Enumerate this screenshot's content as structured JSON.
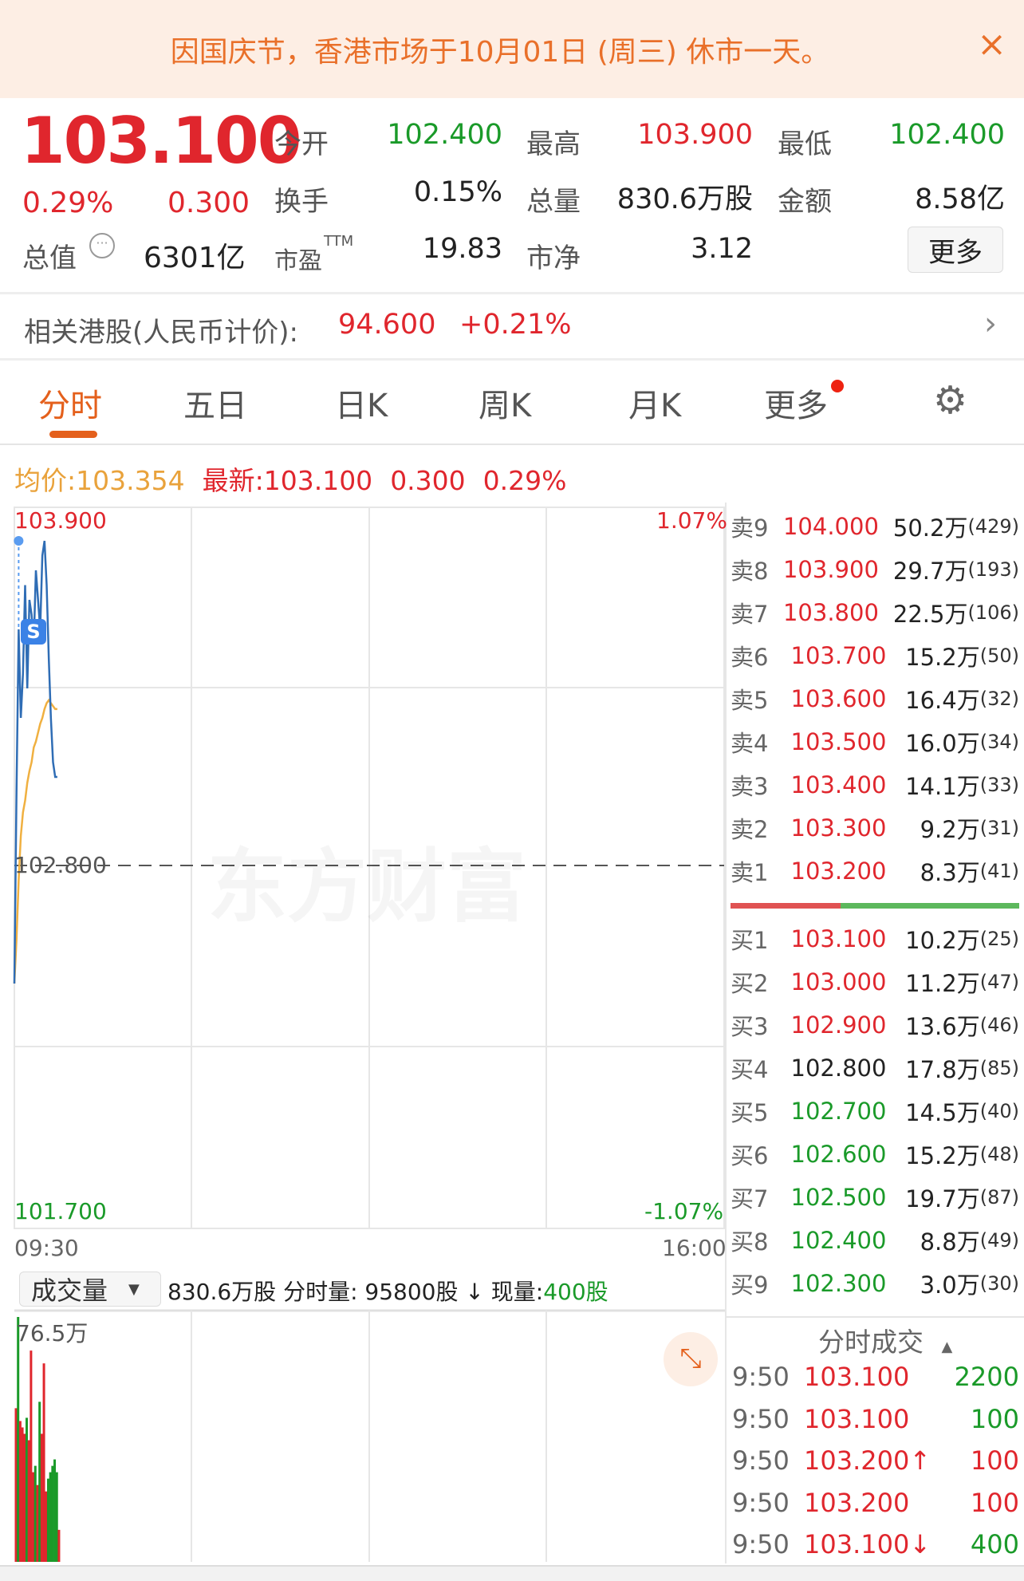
{
  "banner": {
    "text": "因国庆节，香港市场于10月01日 (周三) 休市一天。",
    "close_icon": "×"
  },
  "quote": {
    "price": "103.100",
    "change_pct": "0.29%",
    "change": "0.300",
    "stats": [
      {
        "label": "今开",
        "value": "102.400",
        "color": "green"
      },
      {
        "label": "最高",
        "value": "103.900",
        "color": "red"
      },
      {
        "label": "最低",
        "value": "102.400",
        "color": "green"
      },
      {
        "label": "换手",
        "value": "0.15%",
        "color": "dark"
      },
      {
        "label": "总量",
        "value": "830.6万股",
        "color": "dark"
      },
      {
        "label": "金额",
        "value": "8.58亿",
        "color": "dark"
      },
      {
        "label": "市盈",
        "value": "19.83",
        "color": "dark",
        "sup": "TTM"
      },
      {
        "label": "市净",
        "value": "3.12",
        "color": "dark"
      }
    ],
    "market_cap_label": "总值",
    "market_cap": "6301亿",
    "more_label": "更多"
  },
  "related": {
    "label": "相关港股(人民币计价):",
    "price": "94.600",
    "change": "+0.21%"
  },
  "tabs": [
    {
      "label": "分时",
      "active": true
    },
    {
      "label": "五日"
    },
    {
      "label": "日K"
    },
    {
      "label": "周K"
    },
    {
      "label": "月K"
    },
    {
      "label": "更多",
      "badge": true
    }
  ],
  "info_bar": {
    "avg_label": "均价:",
    "avg": "103.354",
    "latest_label": "最新:",
    "latest": "103.100",
    "change": "0.300",
    "change_pct": "0.29%"
  },
  "chart_data": {
    "type": "line",
    "y_labels": {
      "top": "103.900",
      "mid": "102.800",
      "bottom": "101.700",
      "top_pct": "1.07%",
      "bottom_pct": "-1.07%"
    },
    "x_labels": {
      "start": "09:30",
      "end": "16:00"
    },
    "ylim": [
      101.7,
      103.9
    ],
    "minutes_total": 330,
    "price": [
      102.4,
      103.05,
      103.6,
      103.3,
      103.45,
      103.75,
      103.4,
      103.7,
      103.65,
      103.55,
      103.8,
      103.7,
      103.6,
      103.85,
      103.9,
      103.75,
      103.5,
      103.3,
      103.15,
      103.1,
      103.1
    ],
    "avg": [
      102.4,
      102.55,
      102.75,
      102.9,
      102.98,
      103.02,
      103.08,
      103.12,
      103.15,
      103.2,
      103.22,
      103.25,
      103.28,
      103.3,
      103.33,
      103.35,
      103.36,
      103.35,
      103.34,
      103.33,
      103.33
    ],
    "signal_marker": "S",
    "watermark": "东方财富",
    "volume": {
      "selector": "成交量",
      "total": "830.6万股",
      "minute_label": "分时量:",
      "minute_value": "95800股",
      "arrow": "↓",
      "now_label": "现量:",
      "now_value": "400股",
      "max_label": "76.5万",
      "ylim": [
        0,
        76.5
      ],
      "values": [
        48,
        76.5,
        44,
        42,
        40,
        45,
        38,
        66,
        28,
        30,
        24,
        50,
        40,
        62,
        22,
        26,
        28,
        30,
        32,
        28,
        10
      ],
      "colors": [
        "red",
        "green",
        "red",
        "red",
        "red",
        "green",
        "red",
        "red",
        "red",
        "green",
        "red",
        "green",
        "red",
        "red",
        "red",
        "green",
        "green",
        "green",
        "green",
        "green",
        "red"
      ]
    }
  },
  "order_book": {
    "asks": [
      {
        "label": "卖9",
        "price": "104.000",
        "vol": "50.2万",
        "count": "(429)",
        "color": "red"
      },
      {
        "label": "卖8",
        "price": "103.900",
        "vol": "29.7万",
        "count": "(193)",
        "color": "red"
      },
      {
        "label": "卖7",
        "price": "103.800",
        "vol": "22.5万",
        "count": "(106)",
        "color": "red"
      },
      {
        "label": "卖6",
        "price": "103.700",
        "vol": "15.2万",
        "count": "(50)",
        "color": "red"
      },
      {
        "label": "卖5",
        "price": "103.600",
        "vol": "16.4万",
        "count": "(32)",
        "color": "red"
      },
      {
        "label": "卖4",
        "price": "103.500",
        "vol": "16.0万",
        "count": "(34)",
        "color": "red"
      },
      {
        "label": "卖3",
        "price": "103.400",
        "vol": "14.1万",
        "count": "(33)",
        "color": "red"
      },
      {
        "label": "卖2",
        "price": "103.300",
        "vol": "9.2万",
        "count": "(31)",
        "color": "red"
      },
      {
        "label": "卖1",
        "price": "103.200",
        "vol": "8.3万",
        "count": "(41)",
        "color": "red"
      }
    ],
    "bid_ratio": 0.38,
    "bids": [
      {
        "label": "买1",
        "price": "103.100",
        "vol": "10.2万",
        "count": "(25)",
        "color": "red"
      },
      {
        "label": "买2",
        "price": "103.000",
        "vol": "11.2万",
        "count": "(47)",
        "color": "red"
      },
      {
        "label": "买3",
        "price": "102.900",
        "vol": "13.6万",
        "count": "(46)",
        "color": "red"
      },
      {
        "label": "买4",
        "price": "102.800",
        "vol": "17.8万",
        "count": "(85)",
        "color": "dark"
      },
      {
        "label": "买5",
        "price": "102.700",
        "vol": "14.5万",
        "count": "(40)",
        "color": "green"
      },
      {
        "label": "买6",
        "price": "102.600",
        "vol": "15.2万",
        "count": "(48)",
        "color": "green"
      },
      {
        "label": "买7",
        "price": "102.500",
        "vol": "19.7万",
        "count": "(87)",
        "color": "green"
      },
      {
        "label": "买8",
        "price": "102.400",
        "vol": "8.8万",
        "count": "(49)",
        "color": "green"
      },
      {
        "label": "买9",
        "price": "102.300",
        "vol": "3.0万",
        "count": "(30)",
        "color": "green"
      }
    ]
  },
  "trades": {
    "title": "分时成交",
    "rows": [
      {
        "time": "9:50",
        "price": "103.100",
        "vol": "2200",
        "vol_color": "green"
      },
      {
        "time": "9:50",
        "price": "103.100",
        "vol": "100",
        "vol_color": "green"
      },
      {
        "time": "9:50",
        "price": "103.200↑",
        "vol": "100",
        "vol_color": "red"
      },
      {
        "time": "9:50",
        "price": "103.200",
        "vol": "100",
        "vol_color": "red"
      },
      {
        "time": "9:50",
        "price": "103.100↓",
        "vol": "400",
        "vol_color": "green"
      }
    ]
  },
  "colors": {
    "red": "#e0262d",
    "green": "#1a9a29",
    "accent": "#e4601c",
    "price_line": "#2f6db5",
    "avg_line": "#f0b040"
  }
}
